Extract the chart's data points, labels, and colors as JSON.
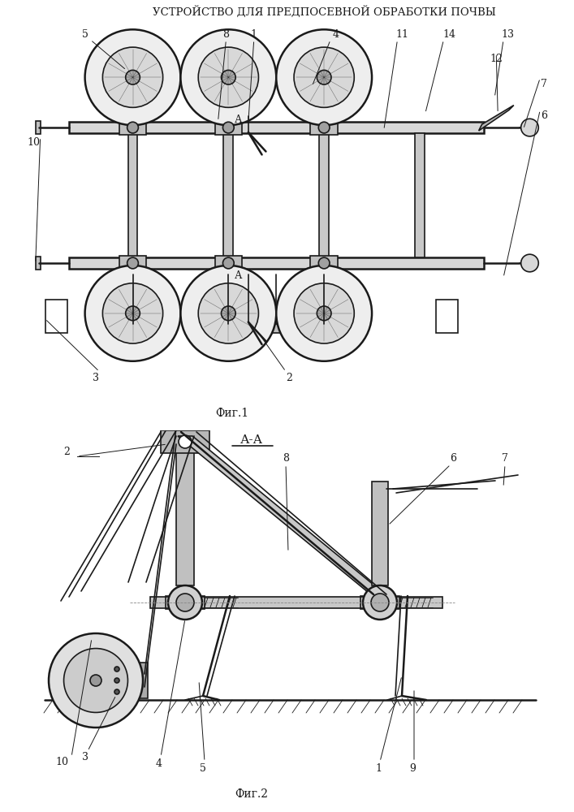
{
  "title": "УСТРОЙСТВО ДЛЯ ПРЕДПОСЕВНОЙ ОБРАБОТКИ ПОЧВЫ",
  "fig1_label": "Фиг.1",
  "fig2_label": "Фиг.2",
  "section_label": "А-А",
  "bg_color": "#ffffff",
  "line_color": "#1a1a1a",
  "line_width": 1.2,
  "thin_line": 0.7,
  "thick_line": 1.8
}
